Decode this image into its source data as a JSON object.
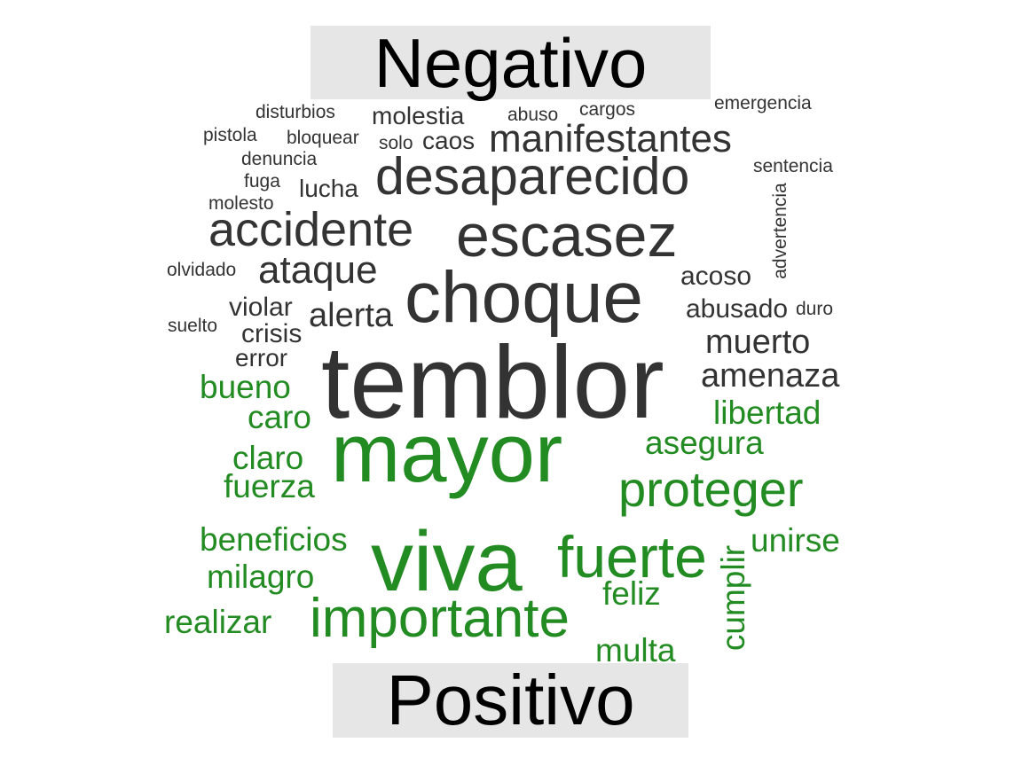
{
  "labels": {
    "negative": "Negativo",
    "positive": "Positivo"
  },
  "colors": {
    "negative": "#333333",
    "positive": "#228b22",
    "label_background": "#e6e6e6",
    "label_text": "#000000"
  },
  "negative_words": [
    "disturbios",
    "molestia",
    "abuso",
    "cargos",
    "emergencia",
    "pistola",
    "bloquear",
    "solo",
    "caos",
    "manifestantes",
    "denuncia",
    "sentencia",
    "desaparecido",
    "fuga",
    "lucha",
    "molesto",
    "advertencia",
    "accidente",
    "escasez",
    "olvidado",
    "ataque",
    "acoso",
    "choque",
    "violar",
    "abusado",
    "duro",
    "suelto",
    "alerta",
    "crisis",
    "muerto",
    "error",
    "temblor",
    "amenaza"
  ],
  "positive_words": [
    "bueno",
    "caro",
    "libertad",
    "mayor",
    "asegura",
    "claro",
    "fuerza",
    "proteger",
    "beneficios",
    "viva",
    "fuerte",
    "unirse",
    "milagro",
    "cumplir",
    "feliz",
    "realizar",
    "importante",
    "multa"
  ]
}
